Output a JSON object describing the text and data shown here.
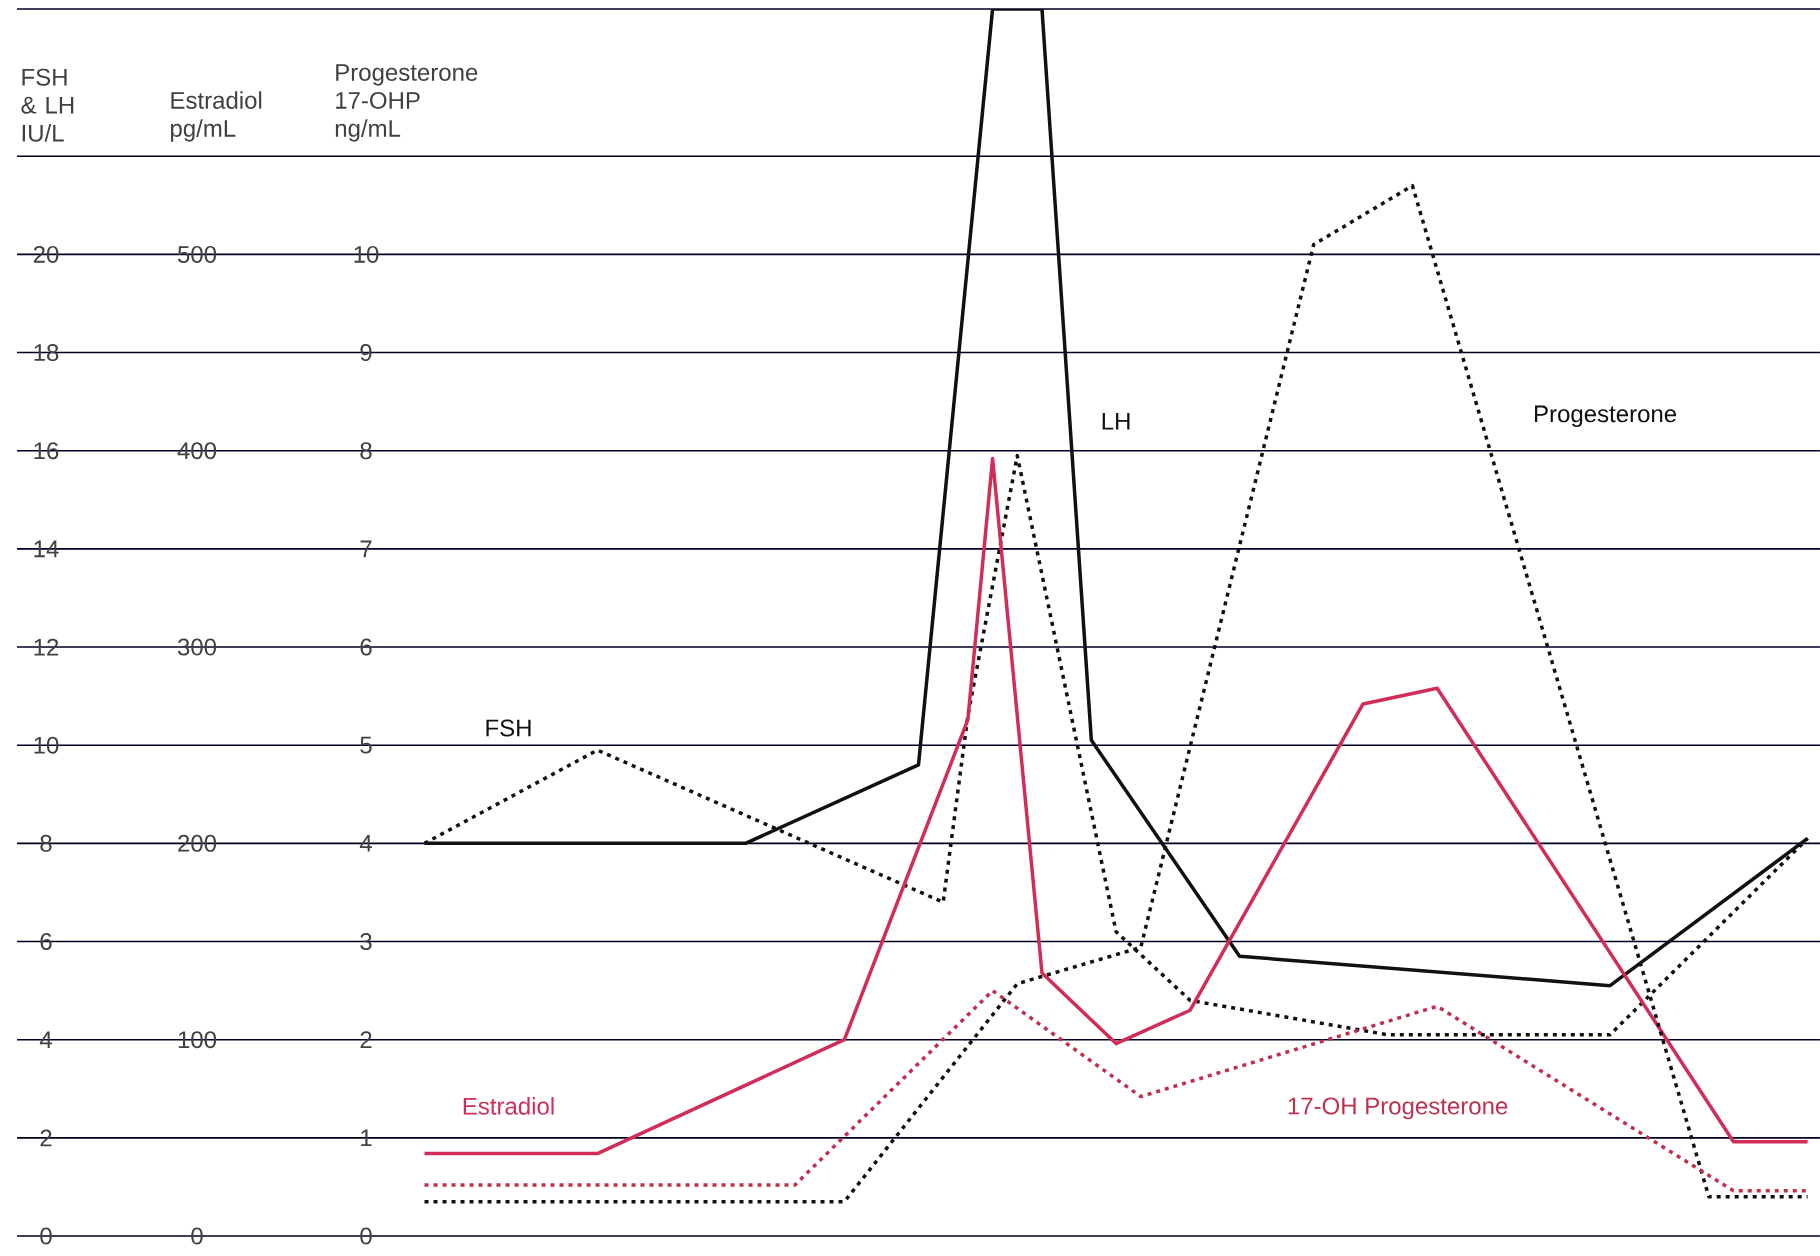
{
  "chart_data": {
    "type": "line",
    "ylabel": "FSH & LH IU/L",
    "y2label": "Estradiol pg/mL",
    "y3label": "Progesterone 17-OHP ng/mL",
    "categories": [
      null,
      null,
      null,
      null,
      null,
      null,
      null,
      null,
      null,
      null,
      null,
      null,
      null,
      null,
      null,
      null,
      null,
      null,
      null,
      null,
      null,
      null,
      null,
      null,
      null,
      null,
      null,
      null,
      null,
      null,
      null,
      null,
      null,
      null,
      null,
      null,
      null,
      null,
      null,
      null,
      null,
      null,
      null,
      null,
      null,
      null,
      null,
      null,
      null,
      null,
      null,
      null,
      null,
      null,
      null,
      null,
      null,
      null,
      null,
      null,
      null,
      null,
      null,
      null,
      null,
      null,
      null,
      null,
      null,
      null,
      null,
      null,
      null
    ],
    "ylim": [
      0,
      25
    ],
    "y2lim": [
      0,
      625
    ],
    "y3lim": [
      0,
      12.5
    ],
    "yticks": [
      0,
      2,
      4,
      6,
      8,
      10,
      12,
      14,
      16,
      18,
      20,
      {
        "value": 22,
        "label": null
      },
      {
        "value": 25,
        "label": null
      }
    ],
    "y2ticks": [
      0,
      100,
      200,
      300,
      400,
      500
    ],
    "y3ticks": [
      0,
      1,
      2,
      3,
      4,
      5,
      6,
      7,
      8,
      9,
      10
    ],
    "tick_labels": "y",
    "grid": "y",
    "series": [
      {
        "name": "FSH",
        "color": "#111111",
        "line_style": "dotted",
        "values": [
          null,
          null,
          null,
          null,
          null,
          null,
          null,
          null,
          null,
          null,
          null,
          null,
          null,
          null,
          null,
          null,
          8,
          null,
          null,
          null,
          null,
          null,
          null,
          9.9,
          null,
          null,
          null,
          null,
          null,
          null,
          null,
          null,
          null,
          null,
          null,
          null,
          null,
          6.8,
          10.6,
          null,
          15.9,
          null,
          null,
          null,
          6.2,
          null,
          null,
          4.8,
          null,
          null,
          null,
          null,
          null,
          null,
          null,
          4.1,
          null,
          null,
          null,
          null,
          null,
          null,
          null,
          null,
          4.1,
          null,
          null,
          null,
          null,
          null,
          null,
          null,
          8.1
        ]
      },
      {
        "name": "LH",
        "color": "#111111",
        "line_style": "solid",
        "values": [
          null,
          null,
          null,
          null,
          null,
          null,
          null,
          null,
          null,
          null,
          null,
          null,
          null,
          null,
          null,
          null,
          8,
          null,
          null,
          null,
          null,
          null,
          null,
          null,
          null,
          null,
          null,
          null,
          null,
          8,
          null,
          null,
          null,
          null,
          null,
          null,
          9.6,
          null,
          null,
          25,
          null,
          25,
          null,
          10.1,
          null,
          null,
          null,
          null,
          null,
          5.7,
          null,
          null,
          null,
          null,
          null,
          null,
          null,
          null,
          null,
          null,
          null,
          null,
          null,
          null,
          5.1,
          null,
          null,
          null,
          null,
          null,
          null,
          null,
          8.1
        ]
      },
      {
        "name": "Estradiol",
        "color": "#d22c58",
        "line_style": "solid",
        "axis": "y2",
        "values": [
          null,
          null,
          null,
          null,
          null,
          null,
          null,
          null,
          null,
          null,
          null,
          null,
          null,
          null,
          null,
          null,
          42,
          null,
          null,
          null,
          null,
          null,
          null,
          42,
          null,
          null,
          null,
          null,
          null,
          null,
          null,
          null,
          null,
          100,
          null,
          null,
          null,
          null,
          263,
          396,
          null,
          134,
          null,
          null,
          98,
          null,
          null,
          115,
          null,
          null,
          null,
          null,
          null,
          null,
          271,
          null,
          null,
          279,
          null,
          null,
          null,
          null,
          null,
          null,
          null,
          null,
          null,
          null,
          null,
          48,
          null,
          null,
          48
        ]
      },
      {
        "name": "Progesterone",
        "color": "#111111",
        "line_style": "dotted",
        "axis": "y3",
        "values": [
          null,
          null,
          null,
          null,
          null,
          null,
          null,
          null,
          null,
          null,
          null,
          null,
          null,
          null,
          null,
          null,
          0.35,
          null,
          null,
          null,
          null,
          null,
          null,
          null,
          null,
          null,
          null,
          null,
          null,
          null,
          null,
          null,
          null,
          0.35,
          null,
          null,
          null,
          null,
          null,
          null,
          2.57,
          null,
          null,
          null,
          null,
          2.94,
          null,
          null,
          null,
          null,
          null,
          null,
          10.1,
          null,
          null,
          null,
          10.7,
          null,
          null,
          null,
          null,
          null,
          null,
          null,
          null,
          null,
          null,
          null,
          0.4,
          null,
          null,
          null,
          0.4
        ]
      },
      {
        "name": "17-OH Progesterone",
        "color": "#c0304e",
        "line_style": "dotted",
        "axis": "y3",
        "values": [
          null,
          null,
          null,
          null,
          null,
          null,
          null,
          null,
          null,
          null,
          null,
          null,
          null,
          null,
          null,
          null,
          0.52,
          null,
          null,
          null,
          null,
          null,
          null,
          null,
          null,
          null,
          null,
          null,
          null,
          null,
          null,
          0.52,
          null,
          null,
          null,
          null,
          null,
          null,
          null,
          2.5,
          null,
          null,
          null,
          null,
          null,
          1.42,
          null,
          null,
          null,
          null,
          null,
          null,
          null,
          null,
          null,
          null,
          null,
          2.34,
          null,
          null,
          null,
          null,
          null,
          null,
          null,
          null,
          null,
          null,
          null,
          0.46,
          null,
          null,
          0.46
        ]
      }
    ]
  }
}
